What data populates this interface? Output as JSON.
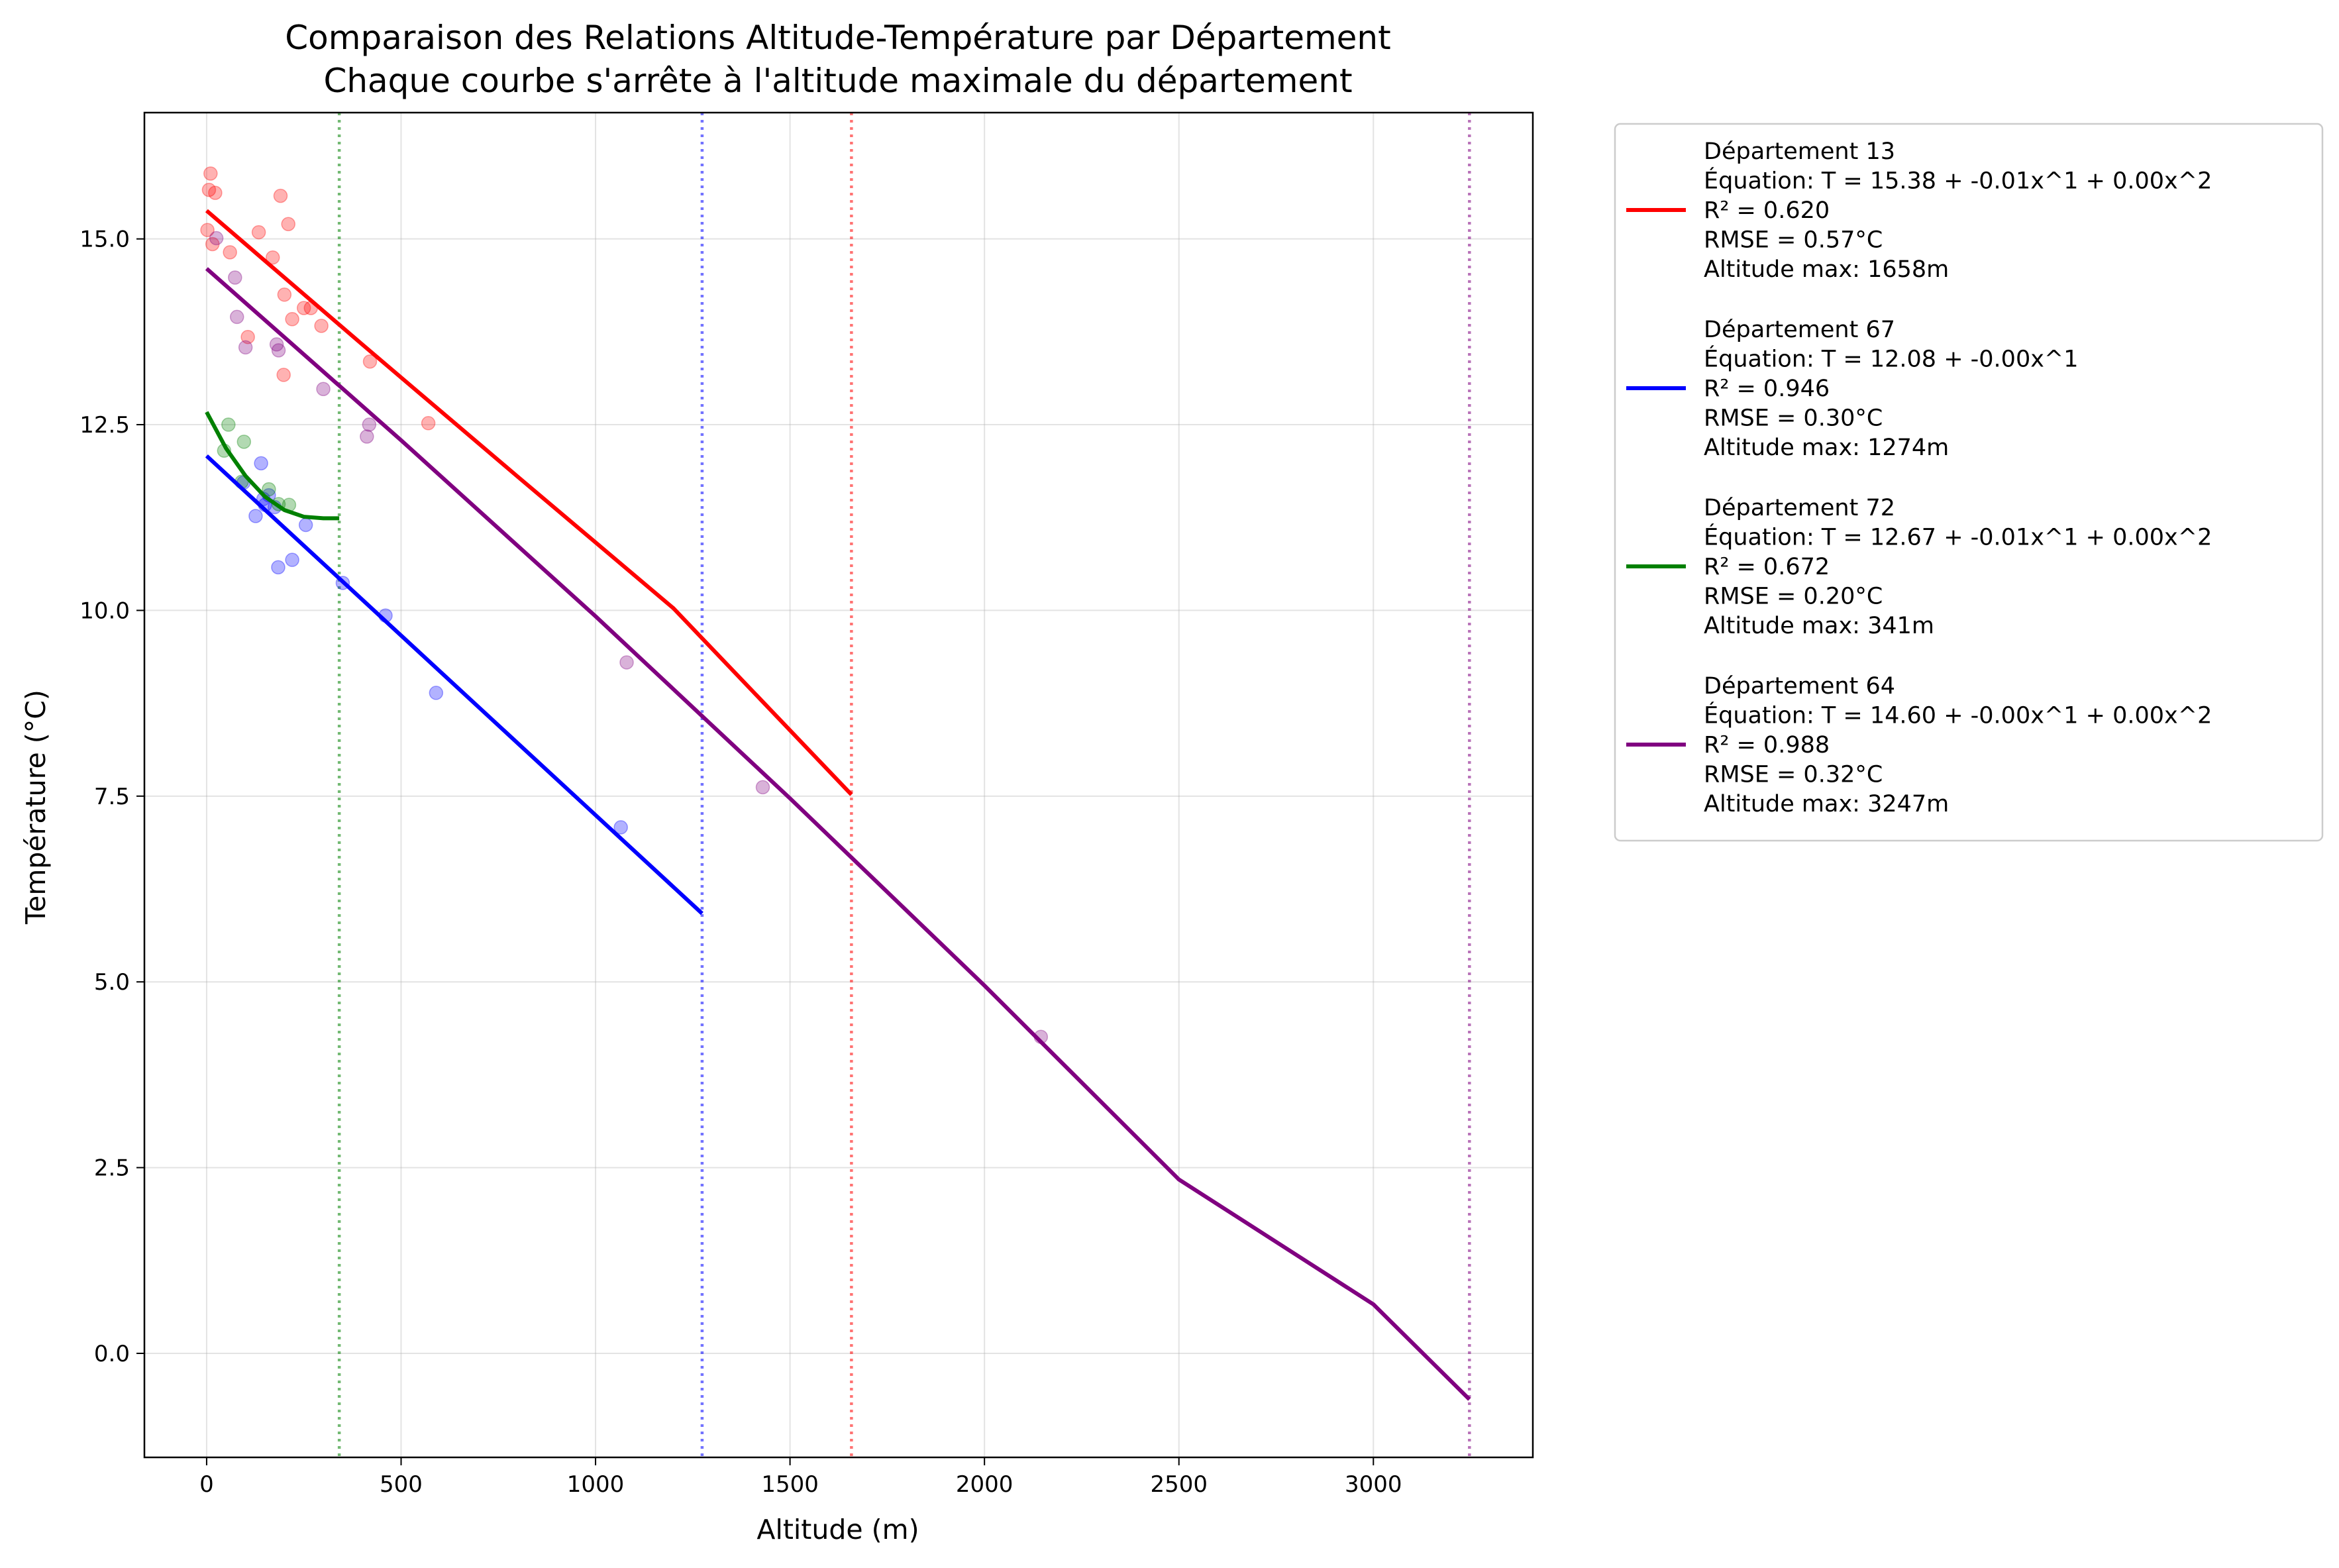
{
  "chart_data": {
    "type": "line",
    "title": "Comparaison des Relations Altitude-Température par Département",
    "subtitle": "Chaque courbe s'arrête à l'altitude maximale du département",
    "xlabel": "Altitude (m)",
    "ylabel": "Température (°C)",
    "xlim": [
      -160,
      3410
    ],
    "ylim": [
      -1.4,
      16.7
    ],
    "xticks": [
      0,
      500,
      1000,
      1500,
      2000,
      2500,
      3000
    ],
    "xtick_labels": [
      "0",
      "500",
      "1000",
      "1500",
      "2000",
      "2500",
      "3000"
    ],
    "yticks": [
      0,
      2.5,
      5,
      7.5,
      10,
      12.5,
      15
    ],
    "ytick_labels": [
      "0.0",
      "2.5",
      "5.0",
      "7.5",
      "10.0",
      "12.5",
      "15.0"
    ],
    "grid": true,
    "legend_placement": "outside-right-top",
    "series": [
      {
        "name": "Département 13",
        "color": "#ff0000",
        "legend_lines": [
          "Département 13",
          "Équation: T = 15.38 + -0.01x^1 + 0.00x^2",
          "R² = 0.620",
          "RMSE = 0.57°C",
          "Altitude max: 1658m"
        ],
        "curve": [
          [
            0,
            15.38
          ],
          [
            400,
            13.58
          ],
          [
            800,
            11.8
          ],
          [
            1200,
            10.03
          ],
          [
            1658,
            7.52
          ]
        ],
        "max_altitude": 1658,
        "points": [
          [
            2,
            15.12
          ],
          [
            6,
            15.66
          ],
          [
            10,
            15.88
          ],
          [
            15,
            14.93
          ],
          [
            22,
            15.62
          ],
          [
            60,
            14.82
          ],
          [
            106,
            13.68
          ],
          [
            134,
            15.09
          ],
          [
            170,
            14.75
          ],
          [
            190,
            15.58
          ],
          [
            198,
            13.17
          ],
          [
            200,
            14.25
          ],
          [
            210,
            15.2
          ],
          [
            220,
            13.92
          ],
          [
            250,
            14.07
          ],
          [
            268,
            14.07
          ],
          [
            295,
            13.83
          ],
          [
            420,
            13.35
          ],
          [
            570,
            12.52
          ]
        ]
      },
      {
        "name": "Département 67",
        "color": "#0000ff",
        "legend_lines": [
          "Département 67",
          "Équation: T = 12.08 + -0.00x^1",
          "R² = 0.946",
          "RMSE = 0.30°C",
          "Altitude max: 1274m"
        ],
        "curve": [
          [
            0,
            12.08
          ],
          [
            1274,
            5.92
          ]
        ],
        "max_altitude": 1274,
        "points": [
          [
            95,
            11.72
          ],
          [
            126,
            11.27
          ],
          [
            140,
            11.98
          ],
          [
            146,
            11.5
          ],
          [
            150,
            11.42
          ],
          [
            160,
            11.55
          ],
          [
            175,
            11.39
          ],
          [
            184,
            10.58
          ],
          [
            220,
            10.68
          ],
          [
            255,
            11.15
          ],
          [
            350,
            10.37
          ],
          [
            460,
            9.93
          ],
          [
            590,
            8.89
          ],
          [
            1065,
            7.08
          ]
        ]
      },
      {
        "name": "Département 72",
        "color": "#008000",
        "legend_lines": [
          "Département 72",
          "Équation: T = 12.67 + -0.01x^1 + 0.00x^2",
          "R² = 0.672",
          "RMSE = 0.20°C",
          "Altitude max: 341m"
        ],
        "curve": [
          [
            0,
            12.67
          ],
          [
            50,
            12.18
          ],
          [
            100,
            11.81
          ],
          [
            150,
            11.53
          ],
          [
            200,
            11.35
          ],
          [
            250,
            11.26
          ],
          [
            300,
            11.24
          ],
          [
            341,
            11.24
          ]
        ],
        "max_altitude": 341,
        "points": [
          [
            45,
            12.15
          ],
          [
            56,
            12.5
          ],
          [
            90,
            11.73
          ],
          [
            96,
            12.27
          ],
          [
            160,
            11.63
          ],
          [
            185,
            11.43
          ],
          [
            212,
            11.42
          ]
        ]
      },
      {
        "name": "Département 64",
        "color": "#800080",
        "legend_lines": [
          "Département 64",
          "Équation: T = 14.60 + -0.00x^1 + 0.00x^2",
          "R² = 0.988",
          "RMSE = 0.32°C",
          "Altitude max: 3247m"
        ],
        "curve": [
          [
            0,
            14.6
          ],
          [
            500,
            12.29
          ],
          [
            1000,
            9.92
          ],
          [
            1500,
            7.47
          ],
          [
            2000,
            4.95
          ],
          [
            2500,
            2.34
          ],
          [
            3000,
            0.66
          ],
          [
            3247,
            -0.62
          ]
        ],
        "max_altitude": 3247,
        "points": [
          [
            25,
            15.01
          ],
          [
            73,
            14.48
          ],
          [
            78,
            13.95
          ],
          [
            100,
            13.54
          ],
          [
            180,
            13.58
          ],
          [
            185,
            13.5
          ],
          [
            300,
            12.98
          ],
          [
            412,
            12.34
          ],
          [
            418,
            12.5
          ],
          [
            1080,
            9.3
          ],
          [
            1430,
            7.62
          ],
          [
            2145,
            4.26
          ]
        ]
      }
    ]
  }
}
